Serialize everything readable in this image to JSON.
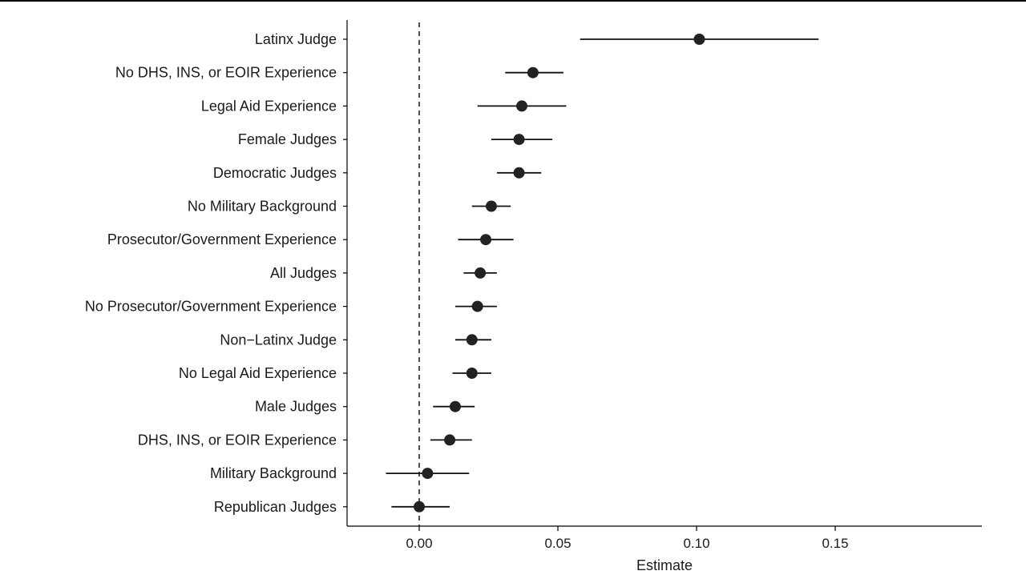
{
  "chart_data": {
    "type": "scatter",
    "subtype": "coefficient-plot",
    "title": "",
    "xlabel": "Estimate",
    "ylabel": "",
    "xlim": [
      -0.02,
      0.152
    ],
    "xticks": [
      0.0,
      0.05,
      0.1,
      0.15
    ],
    "xtick_labels": [
      "0.00",
      "0.05",
      "0.10",
      "0.15"
    ],
    "reference_line": {
      "x": 0,
      "style": "dashed"
    },
    "grid": false,
    "point_color": "#222222",
    "categories": [
      "Latinx Judge",
      "No DHS, INS, or EOIR Experience",
      "Legal Aid Experience",
      "Female Judges",
      "Democratic Judges",
      "No Military Background",
      "Prosecutor/Government Experience",
      "All Judges",
      "No Prosecutor/Government Experience",
      "Non−Latinx Judge",
      "No Legal Aid Experience",
      "Male Judges",
      "DHS, INS, or EOIR Experience",
      "Military Background",
      "Republican Judges"
    ],
    "estimates": [
      0.101,
      0.041,
      0.037,
      0.036,
      0.036,
      0.026,
      0.024,
      0.022,
      0.021,
      0.019,
      0.019,
      0.013,
      0.011,
      0.003,
      0.0
    ],
    "ci_low": [
      0.058,
      0.031,
      0.021,
      0.026,
      0.028,
      0.019,
      0.014,
      0.016,
      0.013,
      0.013,
      0.012,
      0.005,
      0.004,
      -0.012,
      -0.01
    ],
    "ci_high": [
      0.144,
      0.052,
      0.053,
      0.048,
      0.044,
      0.033,
      0.034,
      0.028,
      0.028,
      0.026,
      0.026,
      0.02,
      0.019,
      0.018,
      0.011
    ]
  }
}
